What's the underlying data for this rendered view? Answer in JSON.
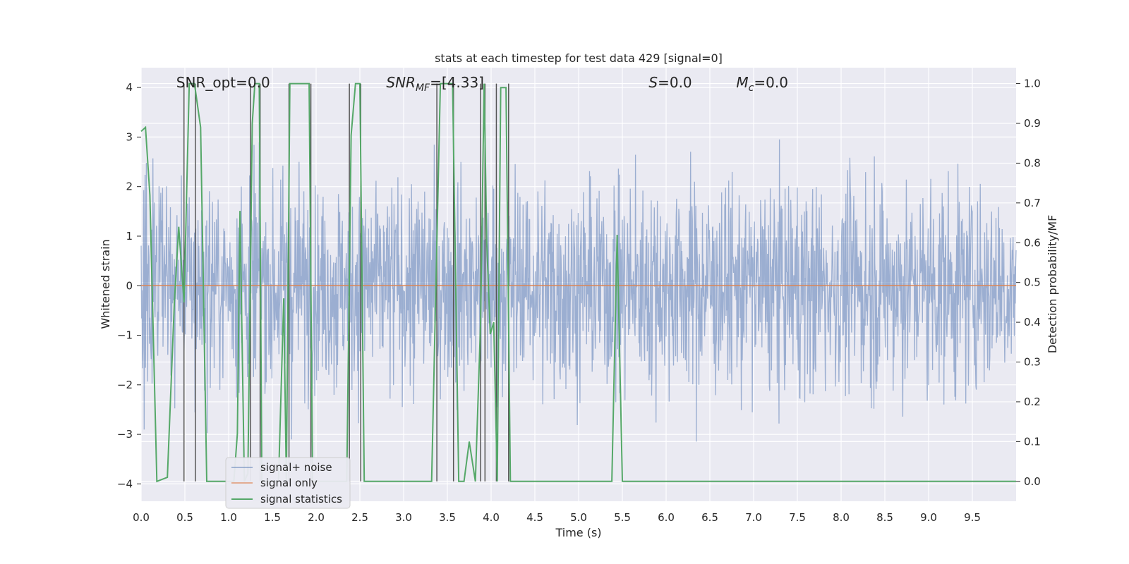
{
  "chart_data": {
    "type": "line",
    "title": "stats at each timestep for test data 429 [signal=0]",
    "xlabel": "Time (s)",
    "ylabel": "Whitened strain",
    "y2label": "Detection probability/MF",
    "xlim": [
      0,
      10
    ],
    "ylim": [
      -4.35,
      4.4
    ],
    "y2lim": [
      -0.05,
      1.04
    ],
    "x_ticks": [
      0.0,
      0.5,
      1.0,
      1.5,
      2.0,
      2.5,
      3.0,
      3.5,
      4.0,
      4.5,
      5.0,
      5.5,
      6.0,
      6.5,
      7.0,
      7.5,
      8.0,
      8.5,
      9.0,
      9.5
    ],
    "x_tick_labels": [
      "0.0",
      "0.5",
      "1.0",
      "1.5",
      "2.0",
      "2.5",
      "3.0",
      "3.5",
      "4.0",
      "4.5",
      "5.0",
      "5.5",
      "6.0",
      "6.5",
      "7.0",
      "7.5",
      "8.0",
      "8.5",
      "9.0",
      "9.5"
    ],
    "y_ticks": [
      4,
      3,
      2,
      1,
      0,
      -1,
      -2,
      -3,
      -4
    ],
    "y_tick_labels": [
      "4",
      "3",
      "2",
      "1",
      "0",
      "−1",
      "−2",
      "−3",
      "−4"
    ],
    "y2_ticks": [
      1.0,
      0.9,
      0.8,
      0.7,
      0.6,
      0.5,
      0.4,
      0.3,
      0.2,
      0.1,
      0.0
    ],
    "y2_tick_labels": [
      "1.0",
      "0.9",
      "0.8",
      "0.7",
      "0.6",
      "0.5",
      "0.4",
      "0.3",
      "0.2",
      "0.1",
      "0.0"
    ],
    "grid": true,
    "legend_position": "lower-left",
    "annotations": [
      {
        "text": "SNR_opt=0.0",
        "x": 0.2
      },
      {
        "text": "SNR_MF=[4.33]",
        "x": 2.6
      },
      {
        "text": "S=0.0",
        "x": 5.6
      },
      {
        "text": "M_c=0.0",
        "x": 6.6
      }
    ],
    "series": [
      {
        "name": "signal+ noise",
        "axis": "left",
        "color": "#4c72b0",
        "kind": "dense-noise",
        "approx_range": [
          -4.0,
          4.0
        ],
        "typical_envelope": [
          -2.5,
          2.6
        ],
        "samples_per_second": 100
      },
      {
        "name": "signal only",
        "axis": "left",
        "color": "#dd8452",
        "x": [
          0,
          10
        ],
        "y": [
          0,
          0
        ]
      },
      {
        "name": "signal statistics",
        "axis": "right",
        "color": "#55a868",
        "x": [
          0.0,
          0.05,
          0.1,
          0.18,
          0.3,
          0.38,
          0.43,
          0.49,
          0.55,
          0.61,
          0.68,
          0.75,
          0.82,
          1.06,
          1.1,
          1.13,
          1.18,
          1.22,
          1.27,
          1.3,
          1.35,
          1.38,
          1.42,
          1.57,
          1.63,
          1.66,
          1.7,
          1.75,
          1.92,
          1.96,
          2.35,
          2.4,
          2.45,
          2.5,
          2.55,
          3.0,
          3.32,
          3.36,
          3.42,
          3.46,
          3.51,
          3.56,
          3.63,
          3.69,
          3.75,
          3.82,
          3.88,
          3.92,
          3.95,
          3.99,
          4.03,
          4.07,
          4.11,
          4.17,
          4.22,
          4.5,
          5.0,
          5.38,
          5.44,
          5.5,
          5.8,
          10.0
        ],
        "y": [
          0.88,
          0.89,
          0.72,
          0.0,
          0.01,
          0.45,
          0.64,
          0.45,
          1.0,
          1.0,
          0.89,
          0.0,
          0.0,
          0.0,
          0.12,
          0.68,
          0.0,
          0.02,
          0.9,
          1.0,
          1.0,
          0.0,
          0.0,
          0.0,
          0.46,
          0.0,
          1.0,
          1.0,
          1.0,
          0.0,
          0.0,
          0.87,
          1.0,
          1.0,
          0.0,
          0.0,
          0.0,
          0.4,
          1.0,
          1.0,
          1.0,
          1.0,
          0.0,
          0.0,
          0.1,
          0.0,
          0.4,
          1.0,
          0.6,
          0.37,
          0.4,
          0.0,
          0.99,
          0.99,
          0.0,
          0.0,
          0.0,
          0.0,
          0.62,
          0.0,
          0.0,
          0.0
        ]
      }
    ],
    "vertical_markers": {
      "color": "#555555",
      "x": [
        0.49,
        0.62,
        1.25,
        1.36,
        1.69,
        1.94,
        2.38,
        2.51,
        3.38,
        3.57,
        3.88,
        3.93,
        4.06,
        4.2
      ]
    },
    "legend": [
      "signal+ noise",
      "signal only",
      "signal statistics"
    ]
  }
}
